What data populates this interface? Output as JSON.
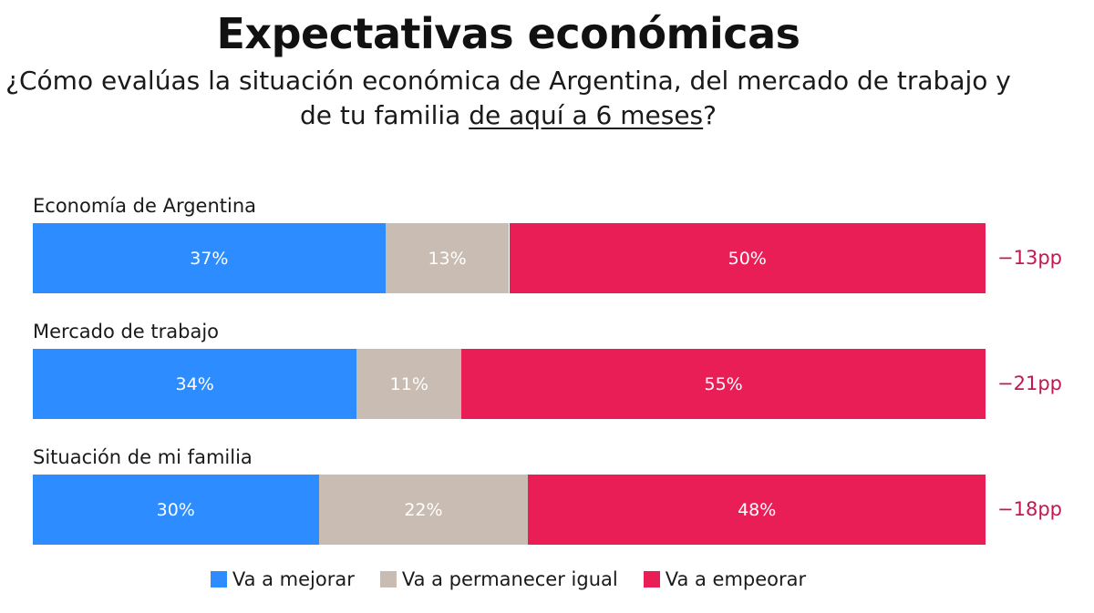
{
  "colors": {
    "mejorar": "#2d8cff",
    "igual": "#c9bcb3",
    "empeorar": "#e91e57",
    "diff_text": "#c2184f"
  },
  "chart_data": {
    "type": "bar",
    "orientation": "horizontal",
    "stacked": true,
    "title": "Expectativas económicas",
    "subtitle_plain": "¿Cómo evalúas la situación económica de Argentina, del mercado de trabajo y de tu familia ",
    "subtitle_underlined": "de aquí a 6 meses",
    "subtitle_end": "?",
    "categories": [
      "Economía de Argentina",
      "Mercado de trabajo",
      "Situación de mi familia"
    ],
    "series": [
      {
        "name": "Va a mejorar",
        "values": [
          37,
          34,
          30
        ],
        "labels": [
          "37%",
          "34%",
          "30%"
        ]
      },
      {
        "name": "Va a permanecer igual",
        "values": [
          13,
          11,
          22
        ],
        "labels": [
          "13%",
          "11%",
          "22%"
        ]
      },
      {
        "name": "Va a empeorar",
        "values": [
          50,
          55,
          48
        ],
        "labels": [
          "50%",
          "55%",
          "48%"
        ]
      }
    ],
    "net_labels": [
      "−13pp",
      "−21pp",
      "−18pp"
    ],
    "xlim": [
      0,
      100
    ],
    "grid": false,
    "legend_position": "bottom"
  }
}
